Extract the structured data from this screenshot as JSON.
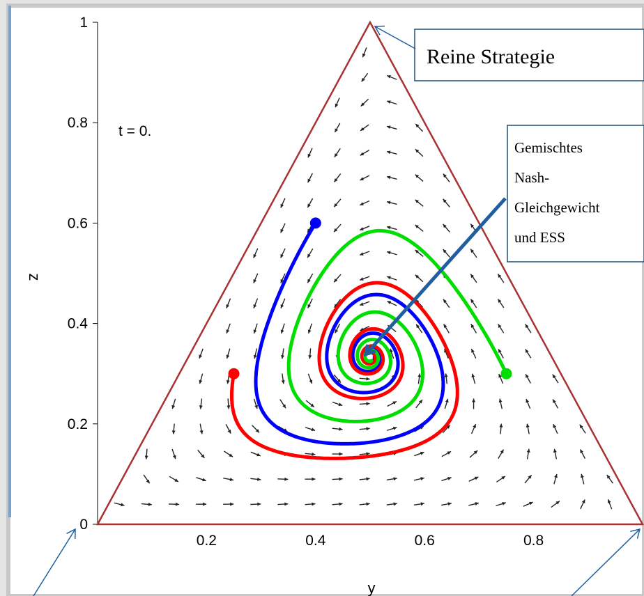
{
  "colors": {
    "triangle": "#a83232",
    "field_arrow": "#222222",
    "callout_border": "#1f4e79",
    "callout_arrow": "#1f5f9f",
    "trajectories": [
      "#0000ff",
      "#ff0000",
      "#00dd00"
    ]
  },
  "time_label": "t = 0.",
  "callouts": {
    "pure_strategy": "Reine Strategie",
    "mixed_nash": [
      "Gemischtes",
      "Nash-",
      "Gleichgewicht",
      "und ESS"
    ]
  },
  "chart_data": {
    "type": "line",
    "xlabel": "y",
    "ylabel": "z",
    "xlim": [
      0,
      1
    ],
    "ylim": [
      0,
      1
    ],
    "x_ticks": [
      "0.2",
      "0.4",
      "0.6",
      "0.8"
    ],
    "y_ticks": [
      "0",
      "0.2",
      "0.4",
      "0.6",
      "0.8",
      "1"
    ],
    "y_tick_values": [
      0,
      0.2,
      0.4,
      0.6,
      0.8,
      1
    ],
    "x_tick_values": [
      0.2,
      0.4,
      0.6,
      0.8
    ],
    "simplex_vertices": [
      [
        0,
        0
      ],
      [
        0.5,
        1
      ],
      [
        1,
        0
      ]
    ],
    "grid": false,
    "legend": "none",
    "series": [
      {
        "start": [
          0.4,
          0.6
        ],
        "color": "#0000ff"
      },
      {
        "start": [
          0.25,
          0.3
        ],
        "color": "#ff0000"
      },
      {
        "start": [
          0.75,
          0.3
        ],
        "color": "#00dd00"
      }
    ],
    "equilibrium": [
      0.5,
      0.3333
    ]
  }
}
